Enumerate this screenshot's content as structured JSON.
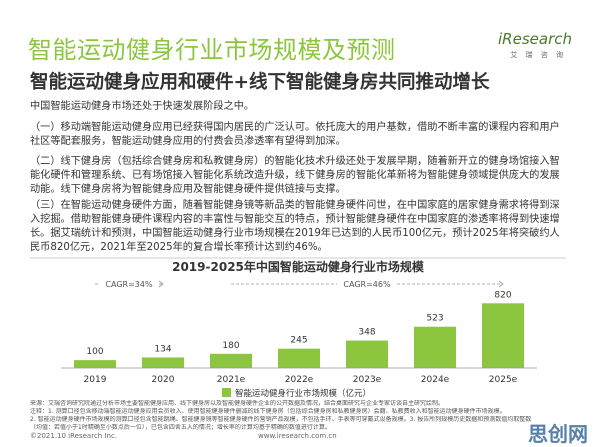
{
  "header": {
    "title": "智能运动健身行业市场规模及预测",
    "logo": "iResearch",
    "logo_sub": "艾 瑞 咨 询",
    "subtitle": "智能运动健身应用和硬件+线下智能健身房共同推动增长"
  },
  "body": [
    "中国智能运动健身市场还处于快速发展阶段之中。",
    "（一）移动端智能运动健身应用已经获得国内居民的广泛认可。依托庞大的用户基数，借助不断丰富的课程内容和用户社区等配套服务，智能运动健身应用的付费会员渗透率有望得到加深。",
    "（二）线下健身房（包括综合健身房和私教健身房）的智能化技术升级还处于发展早期，随着新开立的健身场馆接入智能化硬件和管理系统、已有场馆接入智能化系统改造升级，线下健身房的智能化革新将为智能健身领域提供庞大的发展动能。线下健身房将为智能健身应用及智能健身硬件提供链接与支撑。",
    "（三）在智能运动健身硬件方面，随着智能健身镜等新品类的智能健身硬件问世，在中国家庭的居家健身需求将得到深入挖掘。借助智能健身硬件课程内容的丰富性与智能交互的特点，预计智能健身硬件在中国家庭的渗透率将得到快速增长。据艾瑞统计和预测，中国智能运动健身行业市场规模在2019年已达到的人民币100亿元，预计2025年将突破约人民币820亿元，2021年至2025年的复合增长率预计达到约46%。"
  ],
  "chart_data": {
    "type": "bar",
    "title": "2019-2025年中国智能运动健身行业市场规模",
    "categories": [
      "2019",
      "2020",
      "2021e",
      "2022e",
      "2023e",
      "2024e",
      "2025e"
    ],
    "series": [
      {
        "name": "智能运动健身行业市场规模（亿元）",
        "color": "#8cc63f",
        "values": [
          100,
          134,
          180,
          245,
          348,
          523,
          820
        ]
      }
    ],
    "ylim": [
      0,
      900
    ],
    "annotations": [
      "CAGR=34%",
      "CAGR=46%"
    ]
  },
  "footer": {
    "notes": [
      "来源：艾瑞咨询研究院通过分析市场主要智能健身应用、线下健身房以及智能健身硬件企业的公开数据及情况，结合桌面研究与企业专家访谈自主研究绘制。",
      "注释：1. 测算口径包含移动端智能运动健身应用会员收入、使用智能健身硬件删减的线下健身房（包括综合健身房和私教健身房）会籍、私教费收入和智能运动健身硬件市场规模。",
      "2. 智能运动健身硬件市场规模的测算口径包含智能跳绳、智能健身镜等智能健身硬件的营销产品规模，不包括手环、手表等可穿戴式设备规模。3. 报告所列规模历史数据和预测数值均取整数",
      "（均值：若值小于1时精确至小数点后一位），已包含四舍五入的情况；增长率的计算均基于精确的数值进行计算。"
    ],
    "copyright": "©2021.10 iResearch Inc.",
    "site": "www.iresearch.com.cn",
    "watermark": "思创网"
  }
}
